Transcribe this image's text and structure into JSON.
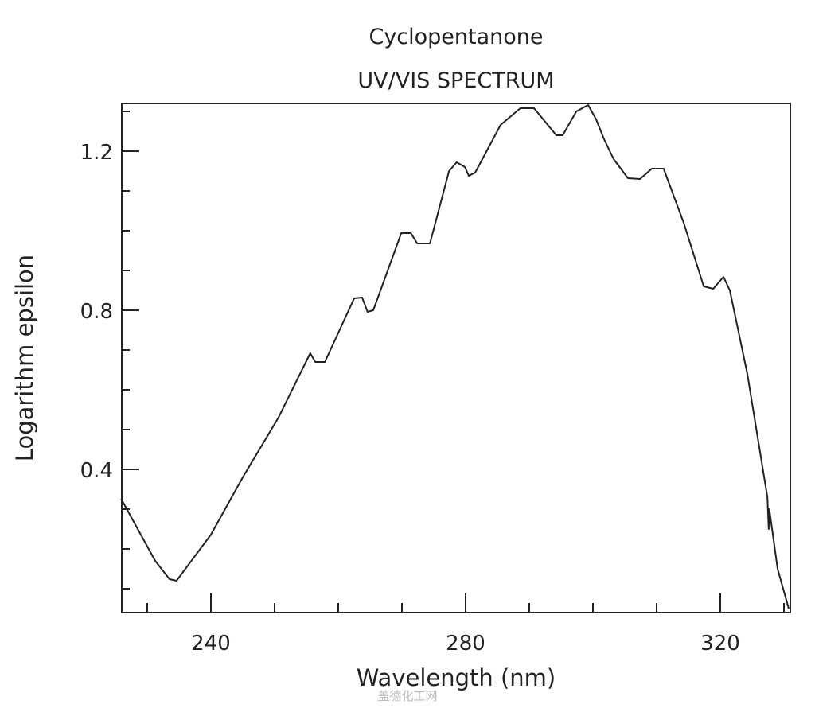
{
  "chart_data": {
    "type": "line",
    "title": "Cyclopentanone",
    "subtitle": "UV/VIS SPECTRUM",
    "xlabel": "Wavelength (nm)",
    "ylabel": "Logarithm epsilon",
    "xlim": [
      226,
      331
    ],
    "ylim": [
      0.04,
      1.32
    ],
    "x_ticks": [
      240,
      280,
      320
    ],
    "x_tick_labels": [
      "240",
      "280",
      "320"
    ],
    "x_minor_step": 10,
    "y_ticks": [
      0.4,
      0.8,
      1.2
    ],
    "y_tick_labels": [
      "0.4",
      "0.8",
      "1.2"
    ],
    "y_minor_step": 0.1,
    "grid": false,
    "line_color": "#222222",
    "series": [
      {
        "x": [
          225.9,
          231.25,
          233.5,
          234.6,
          240,
          245,
          250.6,
          255.6,
          256.4,
          257.9,
          262.5,
          263.75,
          264.6,
          265.5,
          269.9,
          271.4,
          272.4,
          274.4,
          277.4,
          278.6,
          279.9,
          280.5,
          281.5,
          285.5,
          288.6,
          290.75,
          294.25,
          295.25,
          297.4,
          299.25,
          300.5,
          301.75,
          303.25,
          305.5,
          307.4,
          309.25,
          311.1,
          314.25,
          317.4,
          318.9,
          320.5,
          321.5,
          324.25,
          327.4,
          327.6,
          327.7,
          329,
          330.75
        ],
        "y": [
          0.326,
          0.17,
          0.124,
          0.12,
          0.236,
          0.38,
          0.53,
          0.692,
          0.67,
          0.67,
          0.83,
          0.832,
          0.796,
          0.8,
          0.994,
          0.994,
          0.968,
          0.968,
          1.15,
          1.172,
          1.16,
          1.138,
          1.146,
          1.266,
          1.308,
          1.308,
          1.24,
          1.24,
          1.3,
          1.316,
          1.28,
          1.23,
          1.18,
          1.132,
          1.13,
          1.156,
          1.156,
          1.02,
          0.86,
          0.854,
          0.884,
          0.85,
          0.64,
          0.33,
          0.25,
          0.3,
          0.15,
          0.05
        ]
      }
    ]
  },
  "watermark": "盖德化工网"
}
